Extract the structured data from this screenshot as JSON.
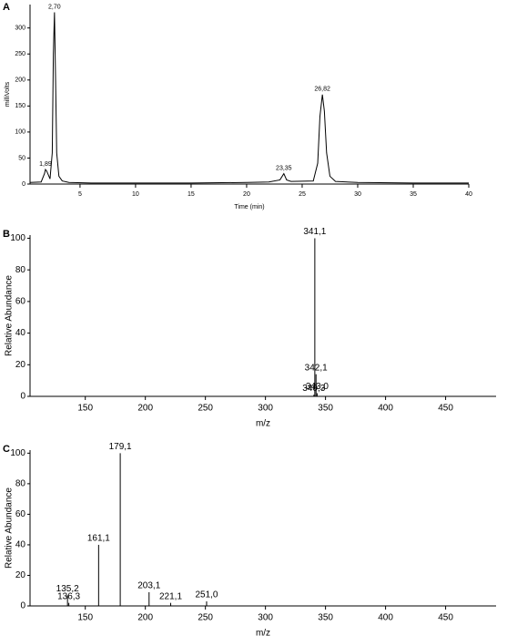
{
  "chart_data": [
    {
      "type": "line",
      "panel": "A",
      "ylabel": "milliVolts",
      "xlabel": "Time (min)",
      "x": [
        0.5,
        1.5,
        1.8,
        1.89,
        2.0,
        2.3,
        2.5,
        2.6,
        2.7,
        2.8,
        2.9,
        3.1,
        3.4,
        4,
        6,
        10,
        15,
        20,
        22,
        23.0,
        23.35,
        23.6,
        24,
        26.0,
        26.4,
        26.6,
        26.82,
        27.0,
        27.2,
        27.5,
        28,
        30,
        35,
        40
      ],
      "values": [
        3,
        4,
        20,
        28,
        25,
        10,
        60,
        250,
        330,
        200,
        60,
        15,
        6,
        3,
        2,
        2,
        2,
        3,
        4,
        8,
        20,
        8,
        5,
        6,
        40,
        130,
        172,
        140,
        60,
        15,
        5,
        3,
        2,
        2
      ],
      "color": "#000000",
      "peak_labels": [
        {
          "value": 1.89,
          "label": "1,89"
        },
        {
          "value": 2.7,
          "label": "2,70"
        },
        {
          "value": 23.35,
          "label": "23,35"
        },
        {
          "value": 26.82,
          "label": "26,82"
        }
      ],
      "xlim": [
        0.5,
        40
      ],
      "ylim": [
        0,
        345
      ],
      "xticks": [
        5,
        10,
        15,
        20,
        25,
        30,
        35,
        40
      ],
      "yticks": [
        0,
        50,
        100,
        150,
        200,
        250,
        300
      ]
    },
    {
      "type": "bar",
      "panel": "B",
      "ylabel": "Relative Abundance",
      "xlabel": "m/z",
      "x": [
        340.3,
        341.1,
        342.1,
        343.0
      ],
      "values": [
        1,
        100,
        14,
        2
      ],
      "x_labels": [
        "340,3",
        "341,1",
        "342,1",
        "343,0"
      ],
      "color": "#000000",
      "xlim": [
        104,
        492
      ],
      "ylim": [
        0,
        102
      ],
      "xticks": [
        150,
        200,
        250,
        300,
        350,
        400,
        450
      ],
      "yticks": [
        0,
        20,
        40,
        60,
        80,
        100
      ]
    },
    {
      "type": "bar",
      "panel": "C",
      "ylabel": "Relative Abundance",
      "xlabel": "m/z",
      "x": [
        135.2,
        136.3,
        161.1,
        179.1,
        203.1,
        221.1,
        251.0
      ],
      "values": [
        7,
        2,
        40,
        100,
        9,
        2,
        3
      ],
      "x_labels": [
        "135,2",
        "136,3",
        "161,1",
        "179,1",
        "203,1",
        "221,1",
        "251,0"
      ],
      "color": "#000000",
      "xlim": [
        104,
        492
      ],
      "ylim": [
        0,
        102
      ],
      "xticks": [
        150,
        200,
        250,
        300,
        350,
        400,
        450
      ],
      "yticks": [
        0,
        20,
        40,
        60,
        80,
        100
      ]
    }
  ]
}
